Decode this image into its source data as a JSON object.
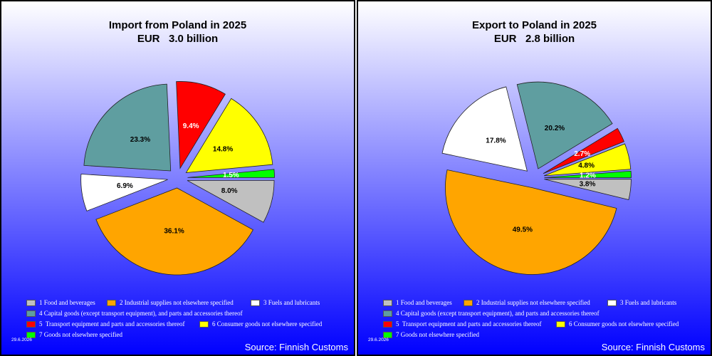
{
  "page": {
    "background_top": "#ffffff",
    "background_bottom": "#0000ff"
  },
  "panels": [
    {
      "date": "29.6.2026",
      "source": "Source: Finnish Customs"
    },
    {
      "date": "29.6.2026",
      "source": "Source: Finnish Customs"
    }
  ],
  "chart_data": [
    {
      "type": "pie",
      "title": "Import from Poland in 2025",
      "subtitle": "EUR   3.0 billion",
      "categories": [
        "1 Food and beverages",
        "2 Industrial supplies not elsewhere specified",
        "3 Fuels and lubricants",
        "4 Capital goods (except transport equipment), and parts and accessories thereof",
        "5  Transport equipment and parts and accessories thereof",
        "6 Consumer goods not elsewhere specified",
        "7 Goods not elsewhere specified"
      ],
      "values": [
        8.0,
        36.1,
        6.9,
        23.3,
        9.4,
        14.8,
        1.5
      ],
      "data_labels": [
        "8.0%",
        "36.1%",
        "6.9%",
        "23.3%",
        "9.4%",
        "14.8%",
        "1.5%"
      ],
      "colors": [
        "#c0c0c0",
        "#ffa500",
        "#ffffff",
        "#5f9ea0",
        "#ff0000",
        "#ffff00",
        "#00ff00"
      ],
      "data_label_colors": [
        "#000000",
        "#000000",
        "#000000",
        "#000000",
        "#ffffff",
        "#000000",
        "#ffffff"
      ],
      "exploded": true,
      "legend_position": "bottom"
    },
    {
      "type": "pie",
      "title": "Export to Poland in 2025",
      "subtitle": "EUR   2.8 billion",
      "categories": [
        "1 Food and beverages",
        "2 Industrial supplies not elsewhere specified",
        "3 Fuels and lubricants",
        "4 Capital goods (except transport equipment), and parts and accessories thereof",
        "5  Transport equipment and parts and accessories thereof",
        "6 Consumer goods not elsewhere specified",
        "7 Goods not elsewhere specified"
      ],
      "values": [
        3.8,
        49.5,
        17.8,
        20.2,
        2.7,
        4.8,
        1.2
      ],
      "data_labels": [
        "3.8%",
        "49.5%",
        "17.8%",
        "20.2%",
        "2.7%",
        "4.8%",
        "1.2%"
      ],
      "colors": [
        "#c0c0c0",
        "#ffa500",
        "#ffffff",
        "#5f9ea0",
        "#ff0000",
        "#ffff00",
        "#00ff00"
      ],
      "data_label_colors": [
        "#000000",
        "#000000",
        "#000000",
        "#000000",
        "#ffffff",
        "#000000",
        "#ffffff"
      ],
      "exploded": true,
      "legend_position": "bottom"
    }
  ]
}
